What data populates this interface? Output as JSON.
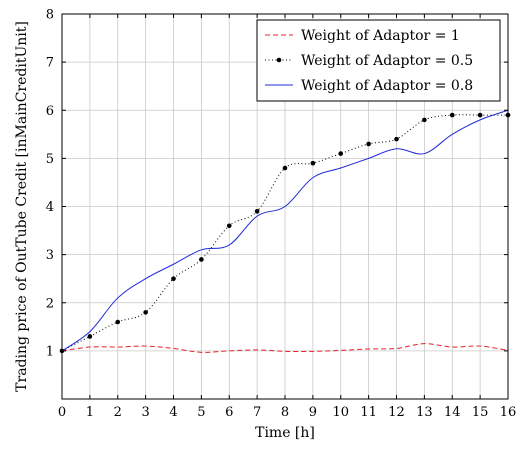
{
  "chart_data": {
    "type": "line",
    "title": "",
    "xlabel": "Time [h]",
    "ylabel": "Trading price of OutTube Credit [inMainCreditUnit]",
    "xlim": [
      0,
      16
    ],
    "ylim": [
      0,
      8
    ],
    "x_ticks": [
      0,
      1,
      2,
      3,
      4,
      5,
      6,
      7,
      8,
      9,
      10,
      11,
      12,
      13,
      14,
      15,
      16
    ],
    "y_ticks": [
      1,
      2,
      3,
      4,
      5,
      6,
      7,
      8
    ],
    "grid": true,
    "legend_position": "top-right",
    "x": [
      0,
      1,
      2,
      3,
      4,
      5,
      6,
      7,
      8,
      9,
      10,
      11,
      12,
      13,
      14,
      15,
      16
    ],
    "series": [
      {
        "name": "Weight of Adaptor = 1",
        "style": "dashed",
        "color": "#e8202a",
        "values": [
          1.0,
          1.08,
          1.08,
          1.1,
          1.05,
          0.97,
          1.0,
          1.02,
          0.99,
          0.99,
          1.01,
          1.04,
          1.05,
          1.15,
          1.08,
          1.1,
          1.01
        ]
      },
      {
        "name": "Weight of Adaptor = 0.5",
        "style": "dotted-markers",
        "color": "#000000",
        "values": [
          1.0,
          1.3,
          1.6,
          1.8,
          2.5,
          2.9,
          3.6,
          3.9,
          4.8,
          4.9,
          5.1,
          5.3,
          5.4,
          5.8,
          5.9,
          5.9,
          5.9
        ]
      },
      {
        "name": "Weight of Adaptor = 0.8",
        "style": "solid",
        "color": "#1f2bd6",
        "values": [
          1.0,
          1.4,
          2.1,
          2.5,
          2.8,
          3.1,
          3.2,
          3.8,
          4.0,
          4.6,
          4.8,
          5.0,
          5.2,
          5.1,
          5.5,
          5.8,
          6.0
        ]
      }
    ]
  }
}
